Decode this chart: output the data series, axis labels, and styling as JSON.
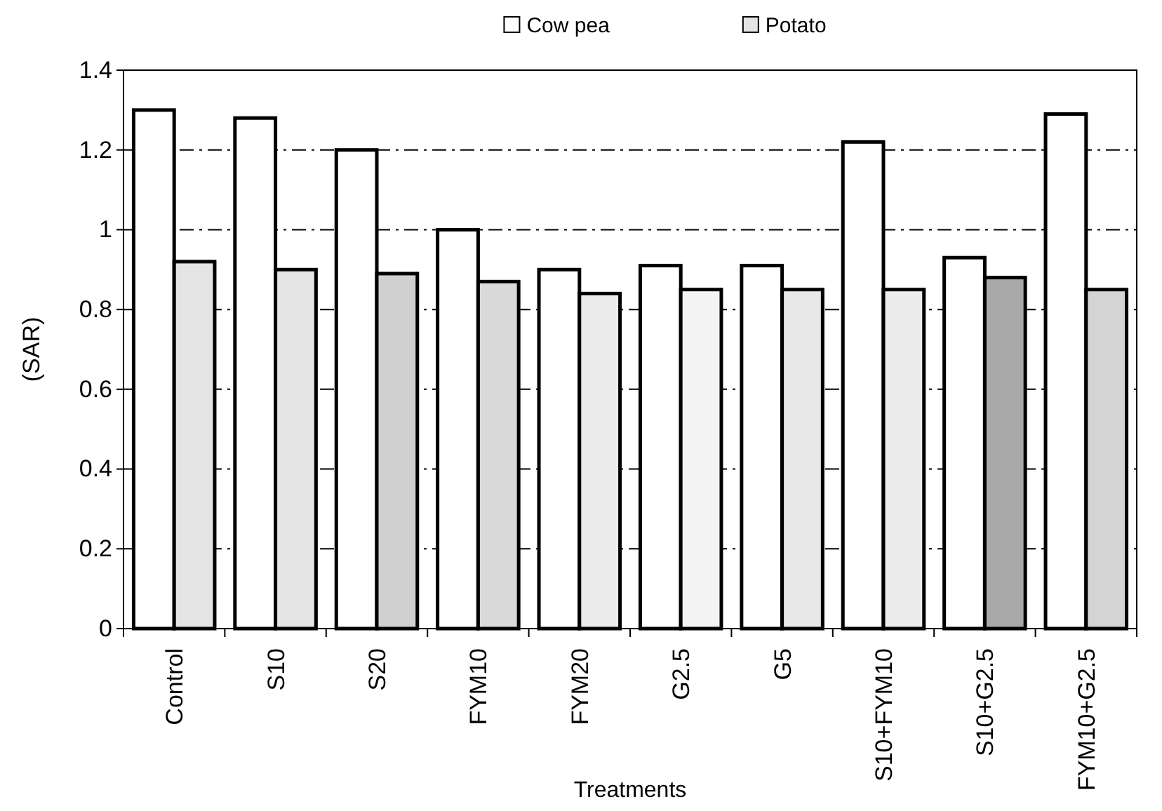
{
  "chart_data": {
    "type": "bar",
    "xlabel": "Treatments",
    "ylabel": "(SAR)",
    "categories": [
      "Control",
      "S10",
      "S20",
      "FYM10",
      "FYM20",
      "G2.5",
      "G5",
      "S10+FYM10",
      "S10+G2.5",
      "FYM10+G2.5"
    ],
    "series": [
      {
        "name": "Cow pea",
        "color": "#ffffff",
        "values": [
          1.3,
          1.28,
          1.2,
          1.0,
          0.9,
          0.91,
          0.91,
          1.22,
          0.93,
          1.29
        ]
      },
      {
        "name": "Potato",
        "color": "#e4e4e4",
        "colors": [
          "#e4e4e4",
          "#e4e4e4",
          "#d0d0d0",
          "#dadada",
          "#ececec",
          "#f4f4f4",
          "#e8e8e8",
          "#ececec",
          "#a8a8a8",
          "#d4d4d4"
        ],
        "values": [
          0.92,
          0.9,
          0.89,
          0.87,
          0.84,
          0.85,
          0.85,
          0.85,
          0.88,
          0.85
        ]
      }
    ],
    "ylim": [
      0,
      1.4
    ],
    "yticks": [
      0,
      0.2,
      0.4,
      0.6,
      0.8,
      1,
      1.2,
      1.4
    ],
    "grid": "y",
    "legend": "top"
  }
}
